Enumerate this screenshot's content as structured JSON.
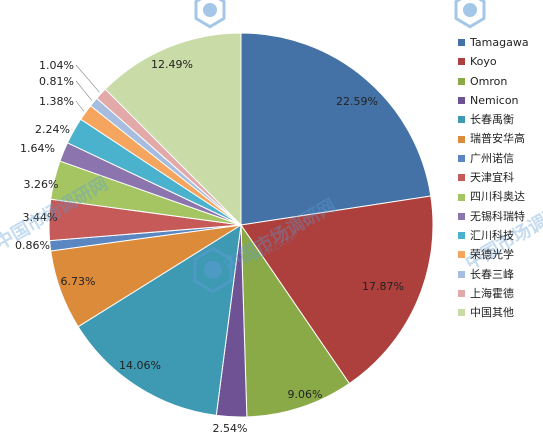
{
  "chart_data": {
    "type": "pie",
    "title": "",
    "categories": [
      "Tamagawa",
      "Koyo",
      "Omron",
      "Nemicon",
      "长春禹衡",
      "瑞普安华高",
      "广州诺信",
      "天津宜科",
      "四川科奥达",
      "无锡科瑞特",
      "汇川科技",
      "荣德光学",
      "长春三峰",
      "上海霍德",
      "中国其他"
    ],
    "values": [
      22.59,
      17.87,
      9.06,
      2.54,
      14.06,
      6.73,
      0.86,
      3.44,
      3.26,
      1.64,
      2.24,
      1.38,
      0.81,
      1.04,
      12.49
    ],
    "value_labels": [
      "22.59%",
      "17.87%",
      "9.06%",
      "2.54%",
      "14.06%",
      "6.73%",
      "0.86%",
      "3.44%",
      "3.26%",
      "1.64%",
      "2.24%",
      "1.38%",
      "0.81%",
      "1.04%",
      "12.49%"
    ],
    "colors": [
      "#4472a6",
      "#ad3f3c",
      "#8aaa48",
      "#6f5294",
      "#3d9ab2",
      "#dc8b3b",
      "#5a87c2",
      "#c55a58",
      "#a5c563",
      "#8c74ae",
      "#4ab2cc",
      "#f5a55e",
      "#a7bde0",
      "#e2a9a8",
      "#c9dba6"
    ],
    "legend_position": "right",
    "start_angle_deg": 0,
    "direction": "clockwise"
  },
  "watermark": {
    "text": "中国市场调研网",
    "subtext": "www.cir.cn",
    "color": "#5b9bd5"
  }
}
